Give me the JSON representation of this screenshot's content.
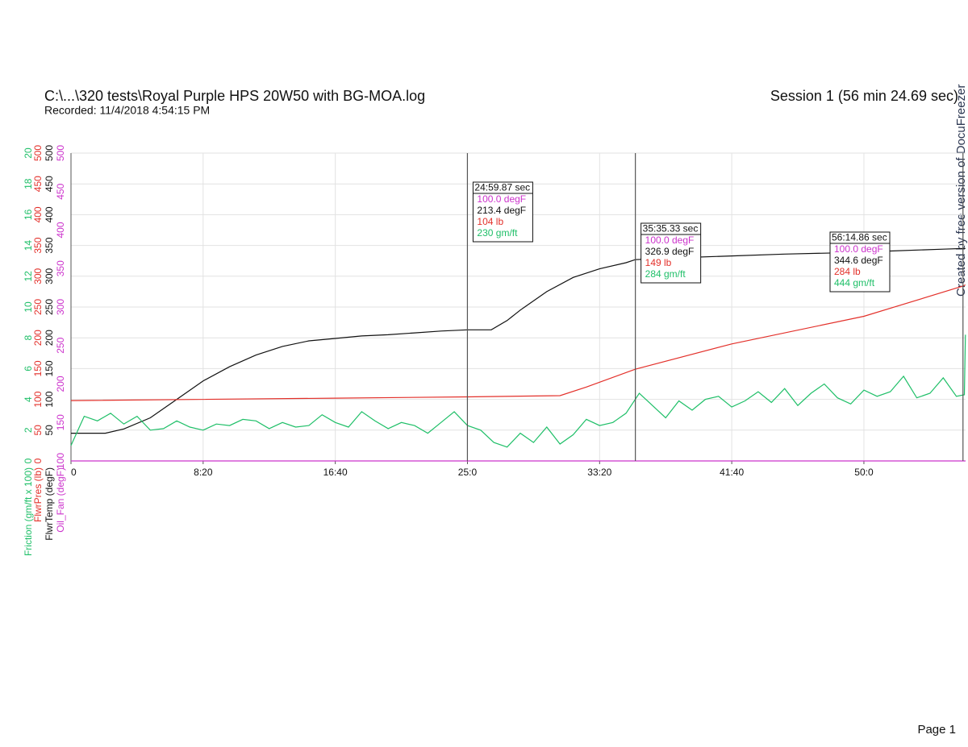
{
  "header": {
    "title": "C:\\...\\320 tests\\Royal Purple HPS 20W50 with BG-MOA.log",
    "recorded": "Recorded: 11/4/2018 4:54:15 PM",
    "session": "Session 1 (56 min 24.69 sec)"
  },
  "watermark": "Created by free version of DocuFreezer",
  "footer": "Page 1",
  "chart_data": {
    "type": "line",
    "xlim": [
      0,
      3384.69
    ],
    "xticks": [
      0,
      {
        "value": 500,
        "label": "8:20"
      },
      {
        "value": 1000,
        "label": "16:40"
      },
      {
        "value": 1500,
        "label": "25:0"
      },
      {
        "value": 2000,
        "label": "33:20"
      },
      {
        "value": 2500,
        "label": "41:40"
      },
      {
        "value": 3000,
        "label": "50:0"
      }
    ],
    "grid": true,
    "axes": [
      {
        "label": "Friction (gm/ft x 100)",
        "color": "#1fbf68",
        "lim": [
          0,
          20
        ],
        "ticks": [
          0,
          2,
          4,
          6,
          8,
          10,
          12,
          14,
          16,
          18,
          20
        ]
      },
      {
        "label": "FlwrPres (lb)",
        "color": "#e3302a",
        "lim": [
          0,
          500
        ],
        "ticks": [
          0,
          50,
          100,
          150,
          200,
          250,
          300,
          350,
          400,
          450,
          500
        ]
      },
      {
        "label": "FlwrTemp (degF)",
        "color": "#111111",
        "lim": [
          0,
          500
        ],
        "ticks": [
          50,
          100,
          150,
          200,
          250,
          300,
          350,
          400,
          450,
          500
        ]
      },
      {
        "label": "Oil_Fan (degF)",
        "color": "#cc33cc",
        "lim": [
          100,
          500
        ],
        "ticks": [
          100,
          150,
          200,
          250,
          300,
          350,
          400,
          450,
          500
        ]
      }
    ],
    "series": [
      {
        "name": "Oil_Fan",
        "axis": 3,
        "color": "#cc33cc",
        "x": [
          0,
          3384.69
        ],
        "values": [
          100,
          100
        ]
      },
      {
        "name": "FlwrTemp",
        "axis": 2,
        "color": "#111111",
        "x": [
          0,
          130,
          200,
          300,
          400,
          500,
          600,
          700,
          800,
          900,
          1000,
          1100,
          1200,
          1300,
          1400,
          1500,
          1590,
          1650,
          1700,
          1800,
          1900,
          2000,
          2100,
          2135,
          2200,
          2300,
          2500,
          2700,
          2900,
          3100,
          3300,
          3375,
          3384
        ],
        "values": [
          45,
          45,
          52,
          70,
          100,
          130,
          153,
          172,
          186,
          195,
          199,
          203,
          205,
          208,
          211,
          213,
          213,
          228,
          245,
          275,
          298,
          312,
          322,
          327,
          328,
          330,
          333,
          336,
          338,
          341,
          344,
          345,
          345
        ]
      },
      {
        "name": "FlwrPres",
        "axis": 1,
        "color": "#e3302a",
        "x": [
          0,
          1000,
          1500,
          1850,
          1950,
          2135,
          2500,
          3000,
          3375,
          3384
        ],
        "values": [
          98,
          102,
          104,
          106,
          120,
          149,
          190,
          235,
          284,
          286
        ]
      },
      {
        "name": "Friction",
        "axis": 0,
        "color": "#1fbf68",
        "x": [
          0,
          50,
          100,
          150,
          200,
          250,
          300,
          350,
          400,
          450,
          500,
          550,
          600,
          650,
          700,
          750,
          800,
          850,
          900,
          950,
          1000,
          1050,
          1100,
          1150,
          1200,
          1250,
          1300,
          1350,
          1400,
          1450,
          1500,
          1550,
          1600,
          1650,
          1700,
          1750,
          1800,
          1850,
          1900,
          1950,
          2000,
          2050,
          2100,
          2150,
          2200,
          2250,
          2300,
          2350,
          2400,
          2450,
          2500,
          2550,
          2600,
          2650,
          2700,
          2750,
          2800,
          2850,
          2900,
          2950,
          3000,
          3050,
          3100,
          3150,
          3200,
          3250,
          3300,
          3350,
          3380,
          3384
        ],
        "values": [
          1.0,
          2.9,
          2.6,
          3.1,
          2.4,
          2.9,
          2.0,
          2.1,
          2.6,
          2.2,
          2.0,
          2.4,
          2.3,
          2.7,
          2.6,
          2.1,
          2.5,
          2.2,
          2.3,
          3.0,
          2.5,
          2.2,
          3.2,
          2.6,
          2.1,
          2.5,
          2.3,
          1.8,
          2.5,
          3.2,
          2.3,
          2.0,
          1.2,
          0.9,
          1.8,
          1.2,
          2.2,
          1.1,
          1.7,
          2.7,
          2.3,
          2.5,
          3.1,
          4.4,
          3.6,
          2.8,
          3.9,
          3.3,
          4.0,
          4.2,
          3.5,
          3.9,
          4.5,
          3.8,
          4.7,
          3.6,
          4.4,
          5.0,
          4.1,
          3.7,
          4.6,
          4.2,
          4.5,
          5.5,
          4.1,
          4.4,
          5.4,
          4.2,
          4.3,
          8.2
        ]
      }
    ],
    "cursors": [
      {
        "x": 1499.87,
        "label": "24:59.87 sec",
        "readings": [
          "100.0 degF",
          "213.4 degF",
          "104 lb",
          "230 gm/ft"
        ]
      },
      {
        "x": 2135.33,
        "label": "35:35.33 sec",
        "readings": [
          "100.0 degF",
          "326.9 degF",
          "149 lb",
          "284 gm/ft"
        ]
      },
      {
        "x": 3374.86,
        "label": "56:14.86 sec",
        "readings": [
          "100.0 degF",
          "344.6 degF",
          "284 lb",
          "444 gm/ft"
        ]
      }
    ]
  }
}
